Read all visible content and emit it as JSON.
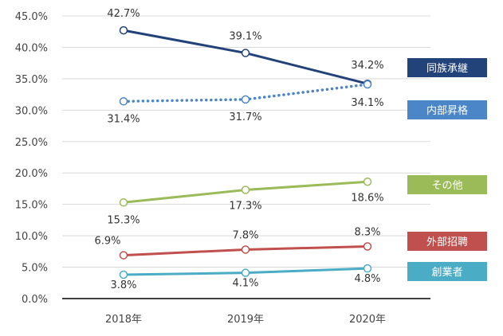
{
  "chart_data": {
    "type": "line",
    "categories": [
      "2018年",
      "2019年",
      "2020年"
    ],
    "ylim": [
      0,
      45
    ],
    "yticks": [
      "0.0%",
      "5.0%",
      "10.0%",
      "15.0%",
      "20.0%",
      "25.0%",
      "30.0%",
      "35.0%",
      "40.0%",
      "45.0%"
    ],
    "grid": true,
    "legend_placement": "right, beside each series end",
    "series": [
      {
        "name": "同族承継",
        "values": [
          42.7,
          39.1,
          34.2
        ],
        "labels": [
          "42.7%",
          "39.1%",
          "34.2%"
        ],
        "color": "#22427a",
        "style": "solid"
      },
      {
        "name": "内部昇格",
        "values": [
          31.4,
          31.7,
          34.1
        ],
        "labels": [
          "31.4%",
          "31.7%",
          "34.1%"
        ],
        "color": "#4a86c8",
        "style": "dotted"
      },
      {
        "name": "その他",
        "values": [
          15.3,
          17.3,
          18.6
        ],
        "labels": [
          "15.3%",
          "17.3%",
          "18.6%"
        ],
        "color": "#9bbb59",
        "style": "solid"
      },
      {
        "name": "外部招聘",
        "values": [
          6.9,
          7.8,
          8.3
        ],
        "labels": [
          "6.9%",
          "7.8%",
          "8.3%"
        ],
        "color": "#c0504d",
        "style": "solid"
      },
      {
        "name": "創業者",
        "values": [
          3.8,
          4.1,
          4.8
        ],
        "labels": [
          "3.8%",
          "4.1%",
          "4.8%"
        ],
        "color": "#4bacc6",
        "style": "solid"
      }
    ]
  }
}
